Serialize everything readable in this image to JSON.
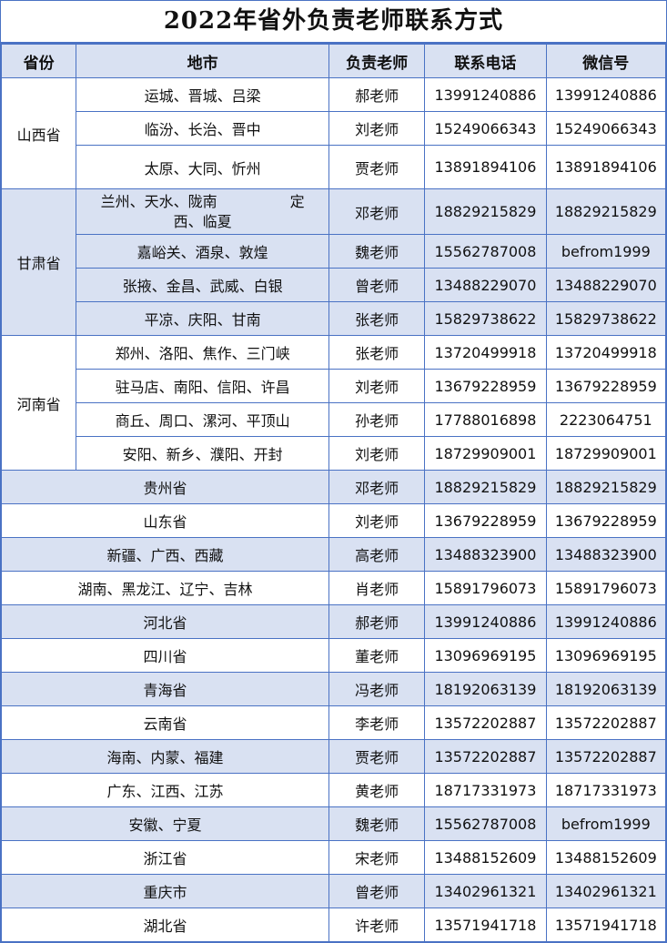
{
  "title": "2022年省外负责老师联系方式",
  "headers": [
    "省份",
    "地市",
    "负责老师",
    "联系电话",
    "微信号"
  ],
  "colors": {
    "border": "#4a72c4",
    "shade": "#d9e1f2"
  },
  "groups": [
    {
      "province": "山西省",
      "shaded": false,
      "rows": [
        {
          "cities": "运城、晋城、吕梁",
          "teacher": "郝老师",
          "phone": "13991240886",
          "wechat": "13991240886"
        },
        {
          "cities": "临汾、长治、晋中",
          "teacher": "刘老师",
          "phone": "15249066343",
          "wechat": "15249066343"
        },
        {
          "cities": "太原、大同、忻州",
          "teacher": "贾老师",
          "phone": "13891894106",
          "wechat": "13891894106"
        }
      ]
    },
    {
      "province": "甘肃省",
      "shaded": true,
      "rows": [
        {
          "cities": "兰州、天水、陇南　　　　　定西、临夏",
          "teacher": "邓老师",
          "phone": "18829215829",
          "wechat": "18829215829"
        },
        {
          "cities": "嘉峪关、酒泉、敦煌",
          "teacher": "魏老师",
          "phone": "15562787008",
          "wechat": "befrom1999"
        },
        {
          "cities": "张掖、金昌、武威、白银",
          "teacher": "曾老师",
          "phone": "13488229070",
          "wechat": "13488229070"
        },
        {
          "cities": "平凉、庆阳、甘南",
          "teacher": "张老师",
          "phone": "15829738622",
          "wechat": "15829738622"
        }
      ]
    },
    {
      "province": "河南省",
      "shaded": false,
      "rows": [
        {
          "cities": "郑州、洛阳、焦作、三门峡",
          "teacher": "张老师",
          "phone": "13720499918",
          "wechat": "13720499918"
        },
        {
          "cities": "驻马店、南阳、信阳、许昌",
          "teacher": "刘老师",
          "phone": "13679228959",
          "wechat": "13679228959"
        },
        {
          "cities": "商丘、周口、漯河、平顶山",
          "teacher": "孙老师",
          "phone": "17788016898",
          "wechat": "2223064751"
        },
        {
          "cities": "安阳、新乡、濮阳、开封",
          "teacher": "刘老师",
          "phone": "18729909001",
          "wechat": "18729909001"
        }
      ]
    }
  ],
  "singles": [
    {
      "region": "贵州省",
      "teacher": "邓老师",
      "phone": "18829215829",
      "wechat": "18829215829",
      "shaded": true
    },
    {
      "region": "山东省",
      "teacher": "刘老师",
      "phone": "13679228959",
      "wechat": "13679228959",
      "shaded": false
    },
    {
      "region": "新疆、广西、西藏",
      "teacher": "高老师",
      "phone": "13488323900",
      "wechat": "13488323900",
      "shaded": true
    },
    {
      "region": "湖南、黑龙江、辽宁、吉林",
      "teacher": "肖老师",
      "phone": "15891796073",
      "wechat": "15891796073",
      "shaded": false
    },
    {
      "region": "河北省",
      "teacher": "郝老师",
      "phone": "13991240886",
      "wechat": "13991240886",
      "shaded": true
    },
    {
      "region": "四川省",
      "teacher": "董老师",
      "phone": "13096969195",
      "wechat": "13096969195",
      "shaded": false
    },
    {
      "region": "青海省",
      "teacher": "冯老师",
      "phone": "18192063139",
      "wechat": "18192063139",
      "shaded": true
    },
    {
      "region": "云南省",
      "teacher": "李老师",
      "phone": "13572202887",
      "wechat": "13572202887",
      "shaded": false
    },
    {
      "region": "海南、内蒙、福建",
      "teacher": "贾老师",
      "phone": "13572202887",
      "wechat": "13572202887",
      "shaded": true
    },
    {
      "region": "广东、江西、江苏",
      "teacher": "黄老师",
      "phone": "18717331973",
      "wechat": "18717331973",
      "shaded": false
    },
    {
      "region": "安徽、宁夏",
      "teacher": "魏老师",
      "phone": "15562787008",
      "wechat": "befrom1999",
      "shaded": true
    },
    {
      "region": "浙江省",
      "teacher": "宋老师",
      "phone": "13488152609",
      "wechat": "13488152609",
      "shaded": false
    },
    {
      "region": "重庆市",
      "teacher": "曾老师",
      "phone": "13402961321",
      "wechat": "13402961321",
      "shaded": true
    },
    {
      "region": "湖北省",
      "teacher": "许老师",
      "phone": "13571941718",
      "wechat": "13571941718",
      "shaded": false
    }
  ]
}
